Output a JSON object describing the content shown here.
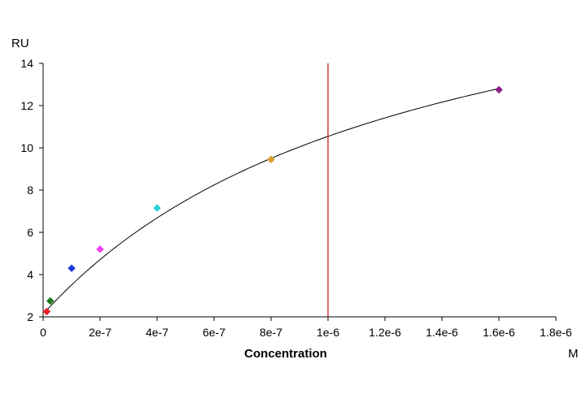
{
  "chart_data": {
    "type": "scatter",
    "xlabel": "Concentration",
    "x_unit": "M",
    "y_unit": "RU",
    "xlim": [
      0,
      1.8e-06
    ],
    "ylim": [
      2,
      14
    ],
    "x_ticks": [
      {
        "value": 0,
        "label": "0"
      },
      {
        "value": 2e-07,
        "label": "2e-7"
      },
      {
        "value": 4e-07,
        "label": "4e-7"
      },
      {
        "value": 6e-07,
        "label": "6e-7"
      },
      {
        "value": 8e-07,
        "label": "8e-7"
      },
      {
        "value": 1e-06,
        "label": "1e-6"
      },
      {
        "value": 1.2e-06,
        "label": "1.2e-6"
      },
      {
        "value": 1.4e-06,
        "label": "1.4e-6"
      },
      {
        "value": 1.6e-06,
        "label": "1.6e-6"
      },
      {
        "value": 1.8e-06,
        "label": "1.8e-6"
      }
    ],
    "y_ticks": [
      {
        "value": 2,
        "label": "2"
      },
      {
        "value": 4,
        "label": "4"
      },
      {
        "value": 6,
        "label": "6"
      },
      {
        "value": 8,
        "label": "8"
      },
      {
        "value": 10,
        "label": "10"
      },
      {
        "value": 12,
        "label": "12"
      },
      {
        "value": 14,
        "label": "14"
      }
    ],
    "points": [
      {
        "x": 1.25e-08,
        "y": 2.25,
        "color": "#e8202a"
      },
      {
        "x": 2.5e-08,
        "y": 2.75,
        "color": "#1c7a1c"
      },
      {
        "x": 1e-07,
        "y": 4.3,
        "color": "#1f3adb"
      },
      {
        "x": 2e-07,
        "y": 5.2,
        "color": "#f23ff0"
      },
      {
        "x": 4e-07,
        "y": 7.15,
        "color": "#2bd4d4"
      },
      {
        "x": 8e-07,
        "y": 9.45,
        "color": "#d7a12a"
      },
      {
        "x": 1.6e-06,
        "y": 12.75,
        "color": "#8a1f8a"
      }
    ],
    "fit_curve": {
      "color": "#000000"
    },
    "vertical_line": {
      "x": 1e-06,
      "color": "#cc2222"
    },
    "grid": false,
    "legend": "none"
  }
}
